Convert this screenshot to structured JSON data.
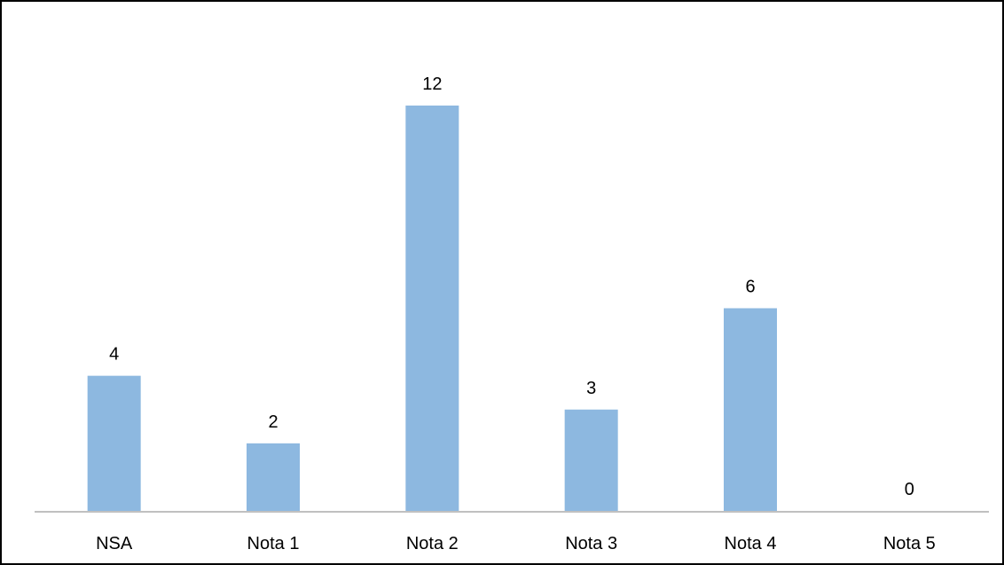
{
  "chart_data": {
    "type": "bar",
    "title": "",
    "xlabel": "",
    "ylabel": "",
    "categories": [
      "NSA",
      "Nota 1",
      "Nota 2",
      "Nota 3",
      "Nota 4",
      "Nota 5"
    ],
    "values": [
      4,
      2,
      12,
      3,
      6,
      0
    ],
    "data_labels": [
      "4",
      "2",
      "12",
      "3",
      "6",
      "0"
    ],
    "ylim": [
      0,
      12
    ],
    "grid": false,
    "legend": "none",
    "colors": {
      "bar": "#8db8e0",
      "axis": "#c0c0c0",
      "text": "#000000",
      "border": "#000000"
    }
  }
}
